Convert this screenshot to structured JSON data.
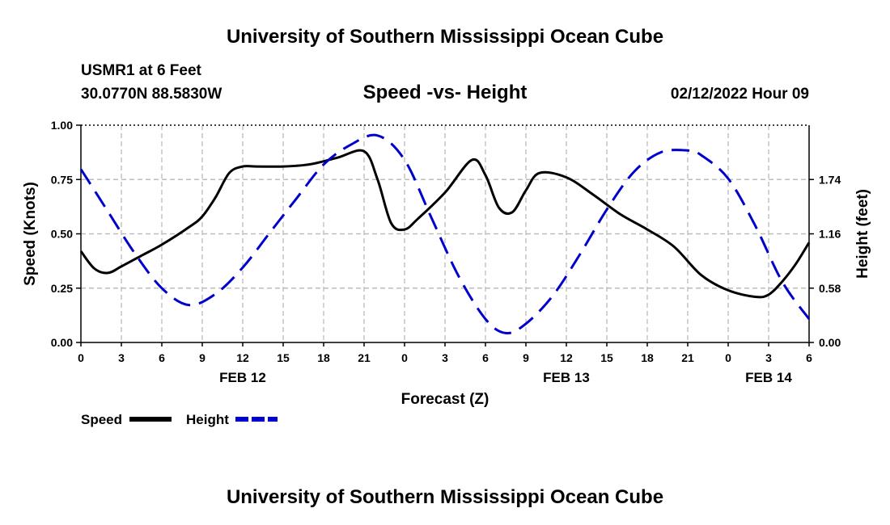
{
  "header": {
    "title": "University of Southern Mississippi Ocean Cube",
    "station": "USMR1 at 6 Feet",
    "coordinates": "30.0770N  88.5830W",
    "datetime": "02/12/2022 Hour 09"
  },
  "footer": {
    "title": "University of Southern Mississippi Ocean Cube"
  },
  "chart_data": {
    "type": "line",
    "title": "Speed -vs- Height",
    "xlabel": "Forecast (Z)",
    "ylabel": "Speed (Knots)",
    "y2label": "Height (feet)",
    "x_ticks": [
      "0",
      "3",
      "6",
      "9",
      "12",
      "15",
      "18",
      "21",
      "0",
      "3",
      "6",
      "9",
      "12",
      "15",
      "18",
      "21",
      "0",
      "3",
      "6"
    ],
    "x_hours_range": [
      0,
      54
    ],
    "date_labels": [
      {
        "label": "FEB 12",
        "hour": 12
      },
      {
        "label": "FEB 13",
        "hour": 36
      },
      {
        "label": "FEB 14",
        "hour": 51
      }
    ],
    "ylim": [
      0,
      1
    ],
    "y_ticks": [
      "0.00",
      "0.25",
      "0.50",
      "0.75",
      "1.00"
    ],
    "y2lim": [
      0,
      2.32
    ],
    "y2_ticks": [
      {
        "label": "0.00",
        "value": 0
      },
      {
        "label": "0.58",
        "value": 0.58
      },
      {
        "label": "1.16",
        "value": 1.16
      },
      {
        "label": "1.74",
        "value": 1.74
      }
    ],
    "grid": true,
    "series": [
      {
        "name": "Speed",
        "axis": "left",
        "color": "#000000",
        "style": "solid",
        "x": [
          0,
          1,
          2,
          3,
          4.5,
          6,
          8,
          9,
          10,
          11,
          12,
          13,
          15,
          17,
          19,
          21,
          22,
          23,
          24,
          25,
          27,
          29,
          30,
          31,
          32,
          33,
          34,
          36,
          38,
          40,
          42,
          44,
          46,
          48,
          50,
          51,
          52,
          53,
          54
        ],
        "y": [
          0.42,
          0.34,
          0.32,
          0.35,
          0.4,
          0.45,
          0.53,
          0.58,
          0.67,
          0.78,
          0.81,
          0.81,
          0.81,
          0.82,
          0.85,
          0.88,
          0.75,
          0.55,
          0.52,
          0.57,
          0.69,
          0.84,
          0.77,
          0.62,
          0.6,
          0.7,
          0.78,
          0.76,
          0.68,
          0.59,
          0.52,
          0.44,
          0.31,
          0.24,
          0.21,
          0.22,
          0.28,
          0.36,
          0.46
        ]
      },
      {
        "name": "Height",
        "axis": "right",
        "color": "#0000cc",
        "style": "dashed",
        "x": [
          0,
          2,
          4,
          6,
          8,
          10,
          12,
          14,
          16,
          18,
          20,
          22,
          24,
          26,
          28,
          30,
          31.5,
          33,
          35,
          37,
          39,
          41,
          43,
          45,
          46,
          48,
          50,
          52,
          54
        ],
        "y": [
          1.85,
          1.4,
          0.95,
          0.58,
          0.4,
          0.52,
          0.8,
          1.17,
          1.54,
          1.9,
          2.11,
          2.21,
          1.95,
          1.33,
          0.71,
          0.25,
          0.1,
          0.2,
          0.5,
          0.94,
          1.42,
          1.82,
          2.03,
          2.05,
          2.0,
          1.75,
          1.25,
          0.65,
          0.25
        ]
      }
    ],
    "legend": [
      {
        "label": "Speed",
        "color": "#000000",
        "style": "solid"
      },
      {
        "label": "Height",
        "color": "#0000cc",
        "style": "dashed"
      }
    ],
    "legend_position": "bottom-left"
  }
}
